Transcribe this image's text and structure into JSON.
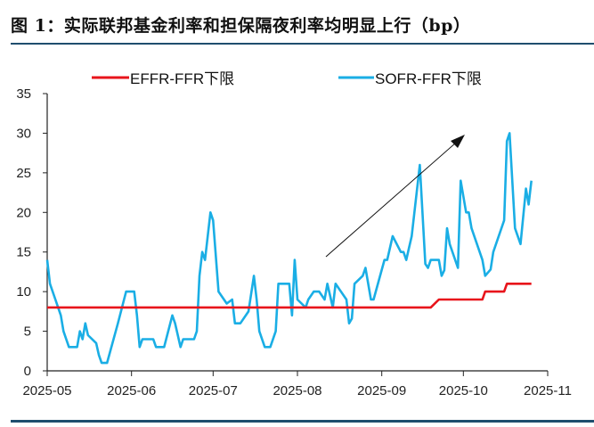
{
  "title": "图 1：实际联邦基金利率和担保隔夜利率均明显上行（bp）",
  "chart_data": {
    "type": "line",
    "title": "图 1：实际联邦基金利率和担保隔夜利率均明显上行（bp）",
    "xlabel": "",
    "ylabel": "",
    "ylim": [
      0,
      35
    ],
    "yticks": [
      "0",
      "5",
      "10",
      "15",
      "20",
      "25",
      "30",
      "35"
    ],
    "xlim": [
      "2025-05-01",
      "2025-11-01"
    ],
    "xticks": [
      "2025-05",
      "2025-06",
      "2025-07",
      "2025-08",
      "2025-09",
      "2025-10",
      "2025-11"
    ],
    "grid": false,
    "legend_position": "top",
    "annotation": "upward arrow indicating rising trend",
    "series": [
      {
        "name": "EFFR-FFR下限",
        "color": "#e8141b",
        "points": [
          [
            "2025-05-01",
            8
          ],
          [
            "2025-09-19",
            8
          ],
          [
            "2025-09-22",
            9
          ],
          [
            "2025-10-08",
            9
          ],
          [
            "2025-10-09",
            10
          ],
          [
            "2025-10-16",
            10
          ],
          [
            "2025-10-17",
            11
          ],
          [
            "2025-10-26",
            11
          ]
        ]
      },
      {
        "name": "SOFR-FFR下限",
        "color": "#1aaee5",
        "points": [
          [
            "2025-05-01",
            14
          ],
          [
            "2025-05-02",
            11
          ],
          [
            "2025-05-04",
            9
          ],
          [
            "2025-05-06",
            7
          ],
          [
            "2025-05-07",
            5
          ],
          [
            "2025-05-09",
            3
          ],
          [
            "2025-05-12",
            3
          ],
          [
            "2025-05-13",
            5
          ],
          [
            "2025-05-14",
            4
          ],
          [
            "2025-05-15",
            6
          ],
          [
            "2025-05-16",
            4.5
          ],
          [
            "2025-05-19",
            3.5
          ],
          [
            "2025-05-20",
            2
          ],
          [
            "2025-05-21",
            1
          ],
          [
            "2025-05-23",
            1
          ],
          [
            "2025-05-27",
            6
          ],
          [
            "2025-05-30",
            10
          ],
          [
            "2025-06-02",
            10
          ],
          [
            "2025-06-03",
            7
          ],
          [
            "2025-06-04",
            3
          ],
          [
            "2025-06-05",
            4
          ],
          [
            "2025-06-09",
            4
          ],
          [
            "2025-06-10",
            3
          ],
          [
            "2025-06-13",
            3
          ],
          [
            "2025-06-16",
            7
          ],
          [
            "2025-06-17",
            6
          ],
          [
            "2025-06-19",
            3
          ],
          [
            "2025-06-20",
            4
          ],
          [
            "2025-06-24",
            4
          ],
          [
            "2025-06-25",
            5
          ],
          [
            "2025-06-26",
            12
          ],
          [
            "2025-06-27",
            15
          ],
          [
            "2025-06-28",
            14
          ],
          [
            "2025-06-30",
            20
          ],
          [
            "2025-07-01",
            19
          ],
          [
            "2025-07-03",
            10
          ],
          [
            "2025-07-06",
            8.5
          ],
          [
            "2025-07-08",
            9
          ],
          [
            "2025-07-09",
            6
          ],
          [
            "2025-07-11",
            6
          ],
          [
            "2025-07-14",
            7.5
          ],
          [
            "2025-07-16",
            12
          ],
          [
            "2025-07-17",
            9
          ],
          [
            "2025-07-18",
            5
          ],
          [
            "2025-07-20",
            3
          ],
          [
            "2025-07-22",
            3
          ],
          [
            "2025-07-24",
            5
          ],
          [
            "2025-07-25",
            11
          ],
          [
            "2025-07-29",
            11
          ],
          [
            "2025-07-30",
            7
          ],
          [
            "2025-07-31",
            14
          ],
          [
            "2025-08-01",
            9
          ],
          [
            "2025-08-04",
            8
          ],
          [
            "2025-08-05",
            9
          ],
          [
            "2025-08-07",
            10
          ],
          [
            "2025-08-09",
            10
          ],
          [
            "2025-08-11",
            9
          ],
          [
            "2025-08-12",
            11
          ],
          [
            "2025-08-14",
            8
          ],
          [
            "2025-08-15",
            11
          ],
          [
            "2025-08-19",
            9
          ],
          [
            "2025-08-20",
            6
          ],
          [
            "2025-08-21",
            6.6
          ],
          [
            "2025-08-22",
            11
          ],
          [
            "2025-08-25",
            12
          ],
          [
            "2025-08-26",
            13
          ],
          [
            "2025-08-28",
            9
          ],
          [
            "2025-08-29",
            9
          ],
          [
            "2025-09-02",
            14
          ],
          [
            "2025-09-03",
            14
          ],
          [
            "2025-09-05",
            17
          ],
          [
            "2025-09-08",
            15
          ],
          [
            "2025-09-09",
            15
          ],
          [
            "2025-09-10",
            14
          ],
          [
            "2025-09-11",
            15.5
          ],
          [
            "2025-09-12",
            17
          ],
          [
            "2025-09-15",
            26
          ],
          [
            "2025-09-17",
            13.5
          ],
          [
            "2025-09-18",
            13
          ],
          [
            "2025-09-19",
            14
          ],
          [
            "2025-09-22",
            14
          ],
          [
            "2025-09-23",
            12
          ],
          [
            "2025-09-24",
            12.7
          ],
          [
            "2025-09-25",
            18
          ],
          [
            "2025-09-26",
            16
          ],
          [
            "2025-09-29",
            13
          ],
          [
            "2025-09-30",
            24
          ],
          [
            "2025-10-02",
            20
          ],
          [
            "2025-10-03",
            20
          ],
          [
            "2025-10-04",
            18
          ],
          [
            "2025-10-08",
            14
          ],
          [
            "2025-10-09",
            12
          ],
          [
            "2025-10-11",
            12.8
          ],
          [
            "2025-10-12",
            15
          ],
          [
            "2025-10-16",
            19
          ],
          [
            "2025-10-17",
            29
          ],
          [
            "2025-10-18",
            30
          ],
          [
            "2025-10-20",
            18
          ],
          [
            "2025-10-22",
            16
          ],
          [
            "2025-10-24",
            23
          ],
          [
            "2025-10-25",
            21
          ],
          [
            "2025-10-26",
            24
          ]
        ]
      }
    ]
  }
}
